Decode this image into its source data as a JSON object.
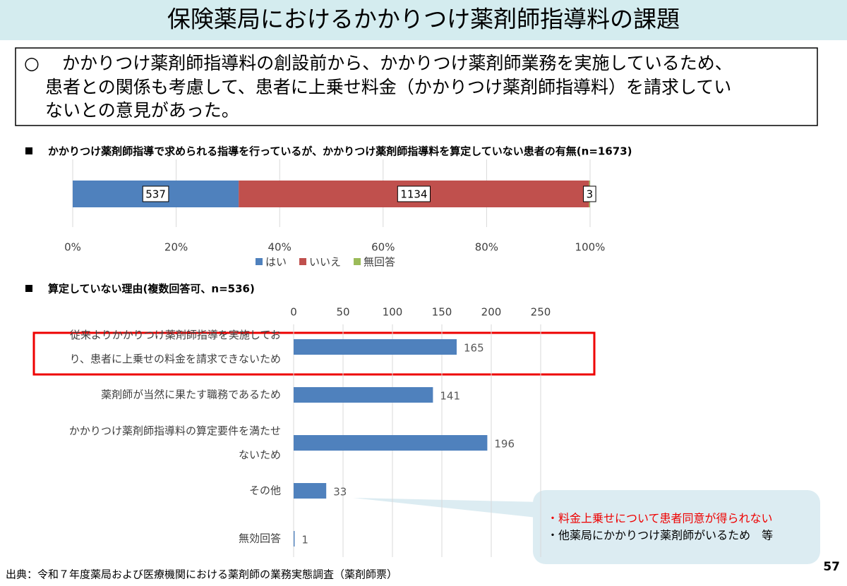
{
  "title": "保険薬局におけるかかりつけ薬剤師指導料の課題",
  "summary": {
    "bullet": "○",
    "lines": [
      "かかりつけ薬剤師指導料の創設前から、かかりつけ薬剤師業務を実施しているため、",
      "患者との関係も考慮して、患者に上乗せ料金（かかりつけ薬剤師指導料）を請求してい",
      "ないとの意見があった。"
    ]
  },
  "chart_data": [
    {
      "type": "stacked_bar_100",
      "title": "かかりつけ薬剤師指導で求められる指導を行っているが、かかりつけ薬剤師指導料を算定していない患者の有無(n=1673)",
      "series": [
        {
          "name": "はい",
          "color": "#4f81bd",
          "values": [
            537
          ]
        },
        {
          "name": "いいえ",
          "color": "#c0504d",
          "values": [
            1134
          ]
        },
        {
          "name": "無回答",
          "color": "#9bbb59",
          "values": [
            3
          ]
        }
      ],
      "xlim": [
        0,
        100
      ],
      "xticks": [
        {
          "value": 0,
          "label": "0%"
        },
        {
          "value": 20,
          "label": "20%"
        },
        {
          "value": 40,
          "label": "40%"
        },
        {
          "value": 60,
          "label": "60%"
        },
        {
          "value": 80,
          "label": "80%"
        },
        {
          "value": 100,
          "label": "100%"
        }
      ],
      "legend": "bottom"
    },
    {
      "type": "hbar",
      "title": "算定していない理由(複数回答可、n=536)",
      "categories": [
        "従来よりかかりつけ薬剤師指導を実施しており、患者に上乗せの料金を請求できないため",
        "薬剤師が当然に果たす職務であるため",
        "かかりつけ薬剤師指導料の算定要件を満たせないため",
        "その他",
        "無効回答"
      ],
      "values": [
        165,
        141,
        196,
        33,
        1
      ],
      "color": "#4f81bd",
      "xlim": [
        0,
        250
      ],
      "xticks": [
        0,
        50,
        100,
        150,
        200,
        250
      ],
      "grid": true,
      "highlight": 0,
      "callout": [
        "・料金上乗せについて患者同意が得られない",
        "・他薬局にかかりつけ薬剤師がいるため　等"
      ]
    }
  ],
  "source": "出典：令和７年度薬局および医療機関における薬剤師の業務実態調査（薬剤師票）",
  "page": 57
}
